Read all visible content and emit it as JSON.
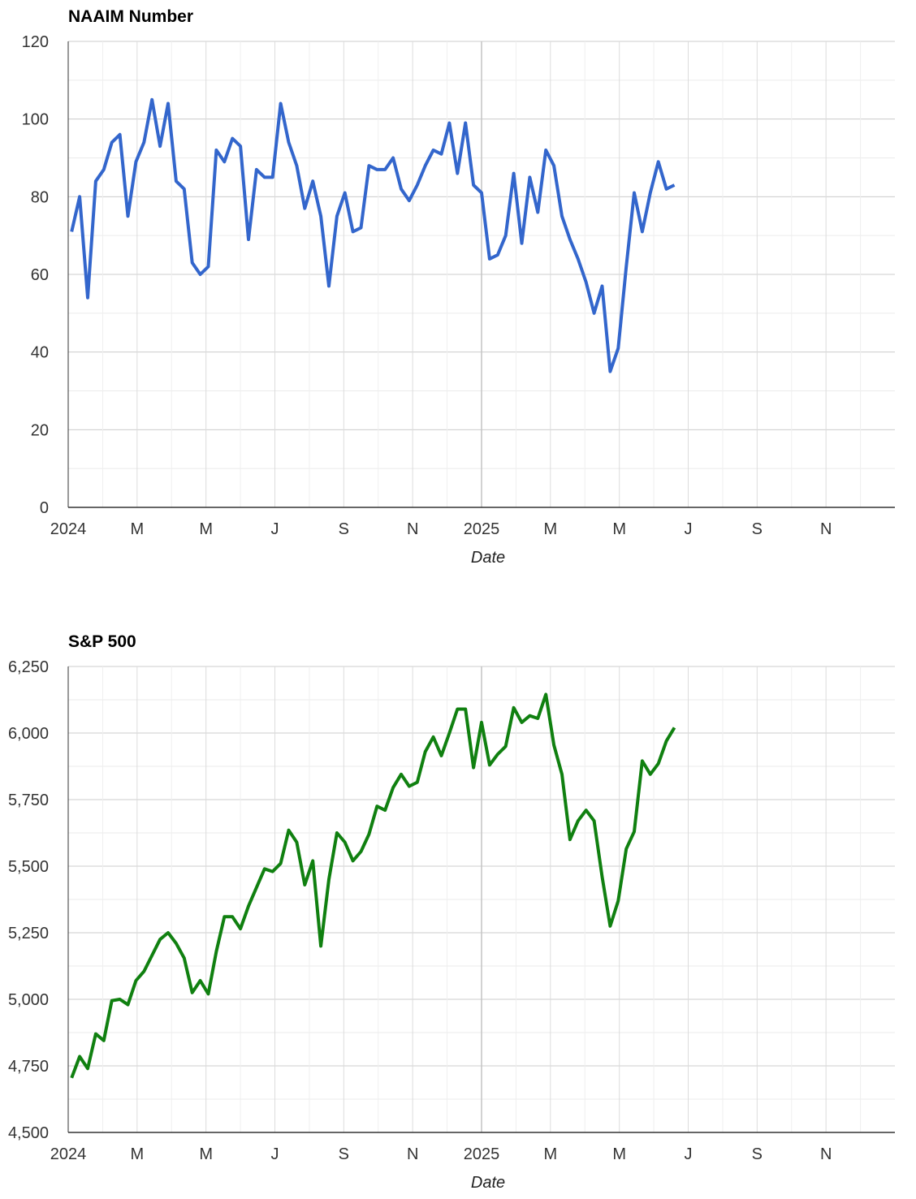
{
  "chart_data": [
    {
      "type": "line",
      "title": "NAAIM Number",
      "xlabel": "Date",
      "ylabel": "",
      "ylim": [
        0,
        120
      ],
      "yticks": [
        "0",
        "20",
        "40",
        "60",
        "80",
        "100",
        "120"
      ],
      "xlim": [
        0,
        24
      ],
      "xticks": [
        {
          "m": 0,
          "label": "2024"
        },
        {
          "m": 2,
          "label": "M"
        },
        {
          "m": 4,
          "label": "M"
        },
        {
          "m": 6,
          "label": "J"
        },
        {
          "m": 8,
          "label": "S"
        },
        {
          "m": 10,
          "label": "N"
        },
        {
          "m": 12,
          "label": "2025"
        },
        {
          "m": 14,
          "label": "M"
        },
        {
          "m": 16,
          "label": "M"
        },
        {
          "m": 18,
          "label": "J"
        },
        {
          "m": 20,
          "label": "S"
        },
        {
          "m": 22,
          "label": "N"
        }
      ],
      "grid": true,
      "series": [
        {
          "color": "#3366cc",
          "values": [
            71,
            80,
            54,
            84,
            87,
            94,
            96,
            75,
            89,
            94,
            105,
            93,
            104,
            84,
            82,
            63,
            60,
            62,
            92,
            89,
            95,
            93,
            69,
            87,
            85,
            85,
            104,
            94,
            88,
            77,
            84,
            75,
            57,
            75,
            81,
            71,
            72,
            88,
            87,
            87,
            90,
            82,
            79,
            83,
            88,
            92,
            91,
            99,
            86,
            99,
            83,
            81,
            64,
            65,
            70,
            86,
            68,
            85,
            76,
            92,
            88,
            75,
            69,
            64,
            58,
            50,
            57,
            35,
            41,
            62,
            81,
            71,
            81,
            89,
            82,
            83
          ]
        }
      ]
    },
    {
      "type": "line",
      "title": "S&P 500",
      "xlabel": "Date",
      "ylabel": "",
      "ylim": [
        4500,
        6250
      ],
      "yticks": [
        "4,500",
        "4,750",
        "5,000",
        "5,250",
        "5,500",
        "5,750",
        "6,000",
        "6,250"
      ],
      "xlim": [
        0,
        24
      ],
      "xticks": [
        {
          "m": 0,
          "label": "2024"
        },
        {
          "m": 2,
          "label": "M"
        },
        {
          "m": 4,
          "label": "M"
        },
        {
          "m": 6,
          "label": "J"
        },
        {
          "m": 8,
          "label": "S"
        },
        {
          "m": 10,
          "label": "N"
        },
        {
          "m": 12,
          "label": "2025"
        },
        {
          "m": 14,
          "label": "M"
        },
        {
          "m": 16,
          "label": "M"
        },
        {
          "m": 18,
          "label": "J"
        },
        {
          "m": 20,
          "label": "S"
        },
        {
          "m": 22,
          "label": "N"
        }
      ],
      "grid": true,
      "series": [
        {
          "color": "#108010",
          "values": [
            4705,
            4785,
            4740,
            4870,
            4845,
            4995,
            5000,
            4980,
            5070,
            5105,
            5165,
            5225,
            5250,
            5210,
            5155,
            5025,
            5070,
            5020,
            5180,
            5310,
            5310,
            5265,
            5350,
            5420,
            5490,
            5480,
            5510,
            5635,
            5590,
            5430,
            5520,
            5200,
            5450,
            5625,
            5590,
            5520,
            5555,
            5620,
            5725,
            5710,
            5795,
            5845,
            5800,
            5815,
            5930,
            5985,
            5915,
            6000,
            6090,
            6090,
            5870,
            6040,
            5880,
            5920,
            5950,
            6095,
            6040,
            6065,
            6055,
            6145,
            5955,
            5845,
            5600,
            5670,
            5710,
            5670,
            5460,
            5275,
            5370,
            5565,
            5630,
            5895,
            5845,
            5885,
            5970,
            6020
          ]
        }
      ]
    }
  ]
}
